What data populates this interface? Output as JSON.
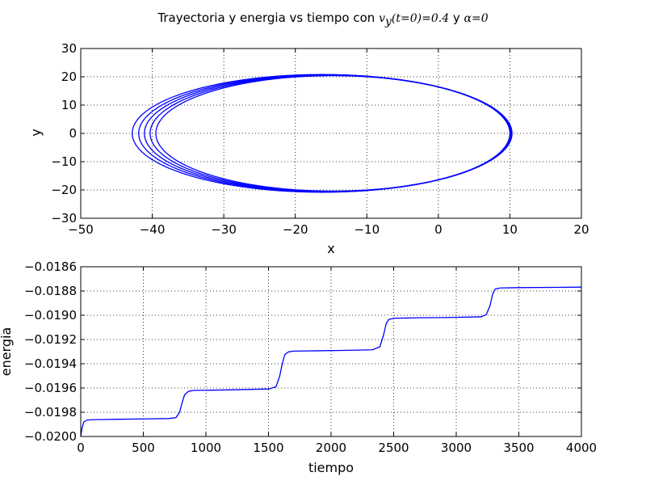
{
  "figure": {
    "title_prefix": "Trayectoria y energia vs tiempo con ",
    "title_math_1": "v",
    "title_math_1_sub": "y",
    "title_math_2": "(t=0)=0.4",
    "title_join": " y ",
    "title_math_3": "α=0"
  },
  "chart_data": [
    {
      "type": "line",
      "xlabel": "x",
      "ylabel": "y",
      "xlim": [
        -50,
        20
      ],
      "ylim": [
        -30,
        30
      ],
      "xticks": [
        -50,
        -40,
        -30,
        -20,
        -10,
        0,
        10,
        20
      ],
      "yticks": [
        -30,
        -20,
        -10,
        0,
        10,
        20,
        30
      ],
      "grid": true,
      "color": "#0000ff",
      "orbits": [
        {
          "x_min": -42.8,
          "x_max": 10.3,
          "y_amp": 20.8
        },
        {
          "x_min": -41.9,
          "x_max": 10.2,
          "y_amp": 20.7
        },
        {
          "x_min": -41.1,
          "x_max": 10.2,
          "y_amp": 20.6
        },
        {
          "x_min": -40.3,
          "x_max": 10.1,
          "y_amp": 20.5
        },
        {
          "x_min": -39.5,
          "x_max": 10.0,
          "y_amp": 20.4
        }
      ]
    },
    {
      "type": "line",
      "xlabel": "tiempo",
      "ylabel": "energia",
      "xlim": [
        0,
        4000
      ],
      "ylim": [
        -0.02,
        -0.0186
      ],
      "xticks": [
        0,
        500,
        1000,
        1500,
        2000,
        2500,
        3000,
        3500,
        4000
      ],
      "yticks": [
        -0.02,
        -0.0198,
        -0.0196,
        -0.0194,
        -0.0192,
        -0.019,
        -0.0188,
        -0.0186
      ],
      "ytick_labels": [
        "−0.0200",
        "−0.0198",
        "−0.0196",
        "−0.0194",
        "−0.0192",
        "−0.0190",
        "−0.0188",
        "−0.0186"
      ],
      "grid": true,
      "color": "#0000ff",
      "points": [
        [
          0,
          -0.02
        ],
        [
          10,
          -0.01993
        ],
        [
          25,
          -0.01988
        ],
        [
          50,
          -0.019865
        ],
        [
          100,
          -0.019861
        ],
        [
          300,
          -0.019858
        ],
        [
          500,
          -0.019855
        ],
        [
          700,
          -0.019852
        ],
        [
          760,
          -0.019845
        ],
        [
          790,
          -0.0198
        ],
        [
          810,
          -0.01972
        ],
        [
          830,
          -0.019655
        ],
        [
          860,
          -0.019628
        ],
        [
          900,
          -0.01962
        ],
        [
          1100,
          -0.019617
        ],
        [
          1300,
          -0.019613
        ],
        [
          1500,
          -0.019608
        ],
        [
          1560,
          -0.01959
        ],
        [
          1590,
          -0.0195
        ],
        [
          1610,
          -0.0194
        ],
        [
          1630,
          -0.019325
        ],
        [
          1660,
          -0.019302
        ],
        [
          1700,
          -0.019296
        ],
        [
          1900,
          -0.019293
        ],
        [
          2100,
          -0.01929
        ],
        [
          2330,
          -0.019285
        ],
        [
          2390,
          -0.01926
        ],
        [
          2420,
          -0.01916
        ],
        [
          2440,
          -0.01907
        ],
        [
          2460,
          -0.019035
        ],
        [
          2500,
          -0.019025
        ],
        [
          2700,
          -0.019021
        ],
        [
          2900,
          -0.019019
        ],
        [
          3200,
          -0.019013
        ],
        [
          3240,
          -0.018995
        ],
        [
          3270,
          -0.01892
        ],
        [
          3290,
          -0.01883
        ],
        [
          3310,
          -0.018785
        ],
        [
          3350,
          -0.018775
        ],
        [
          3500,
          -0.018772
        ],
        [
          3800,
          -0.01877
        ],
        [
          4000,
          -0.018768
        ]
      ]
    }
  ]
}
